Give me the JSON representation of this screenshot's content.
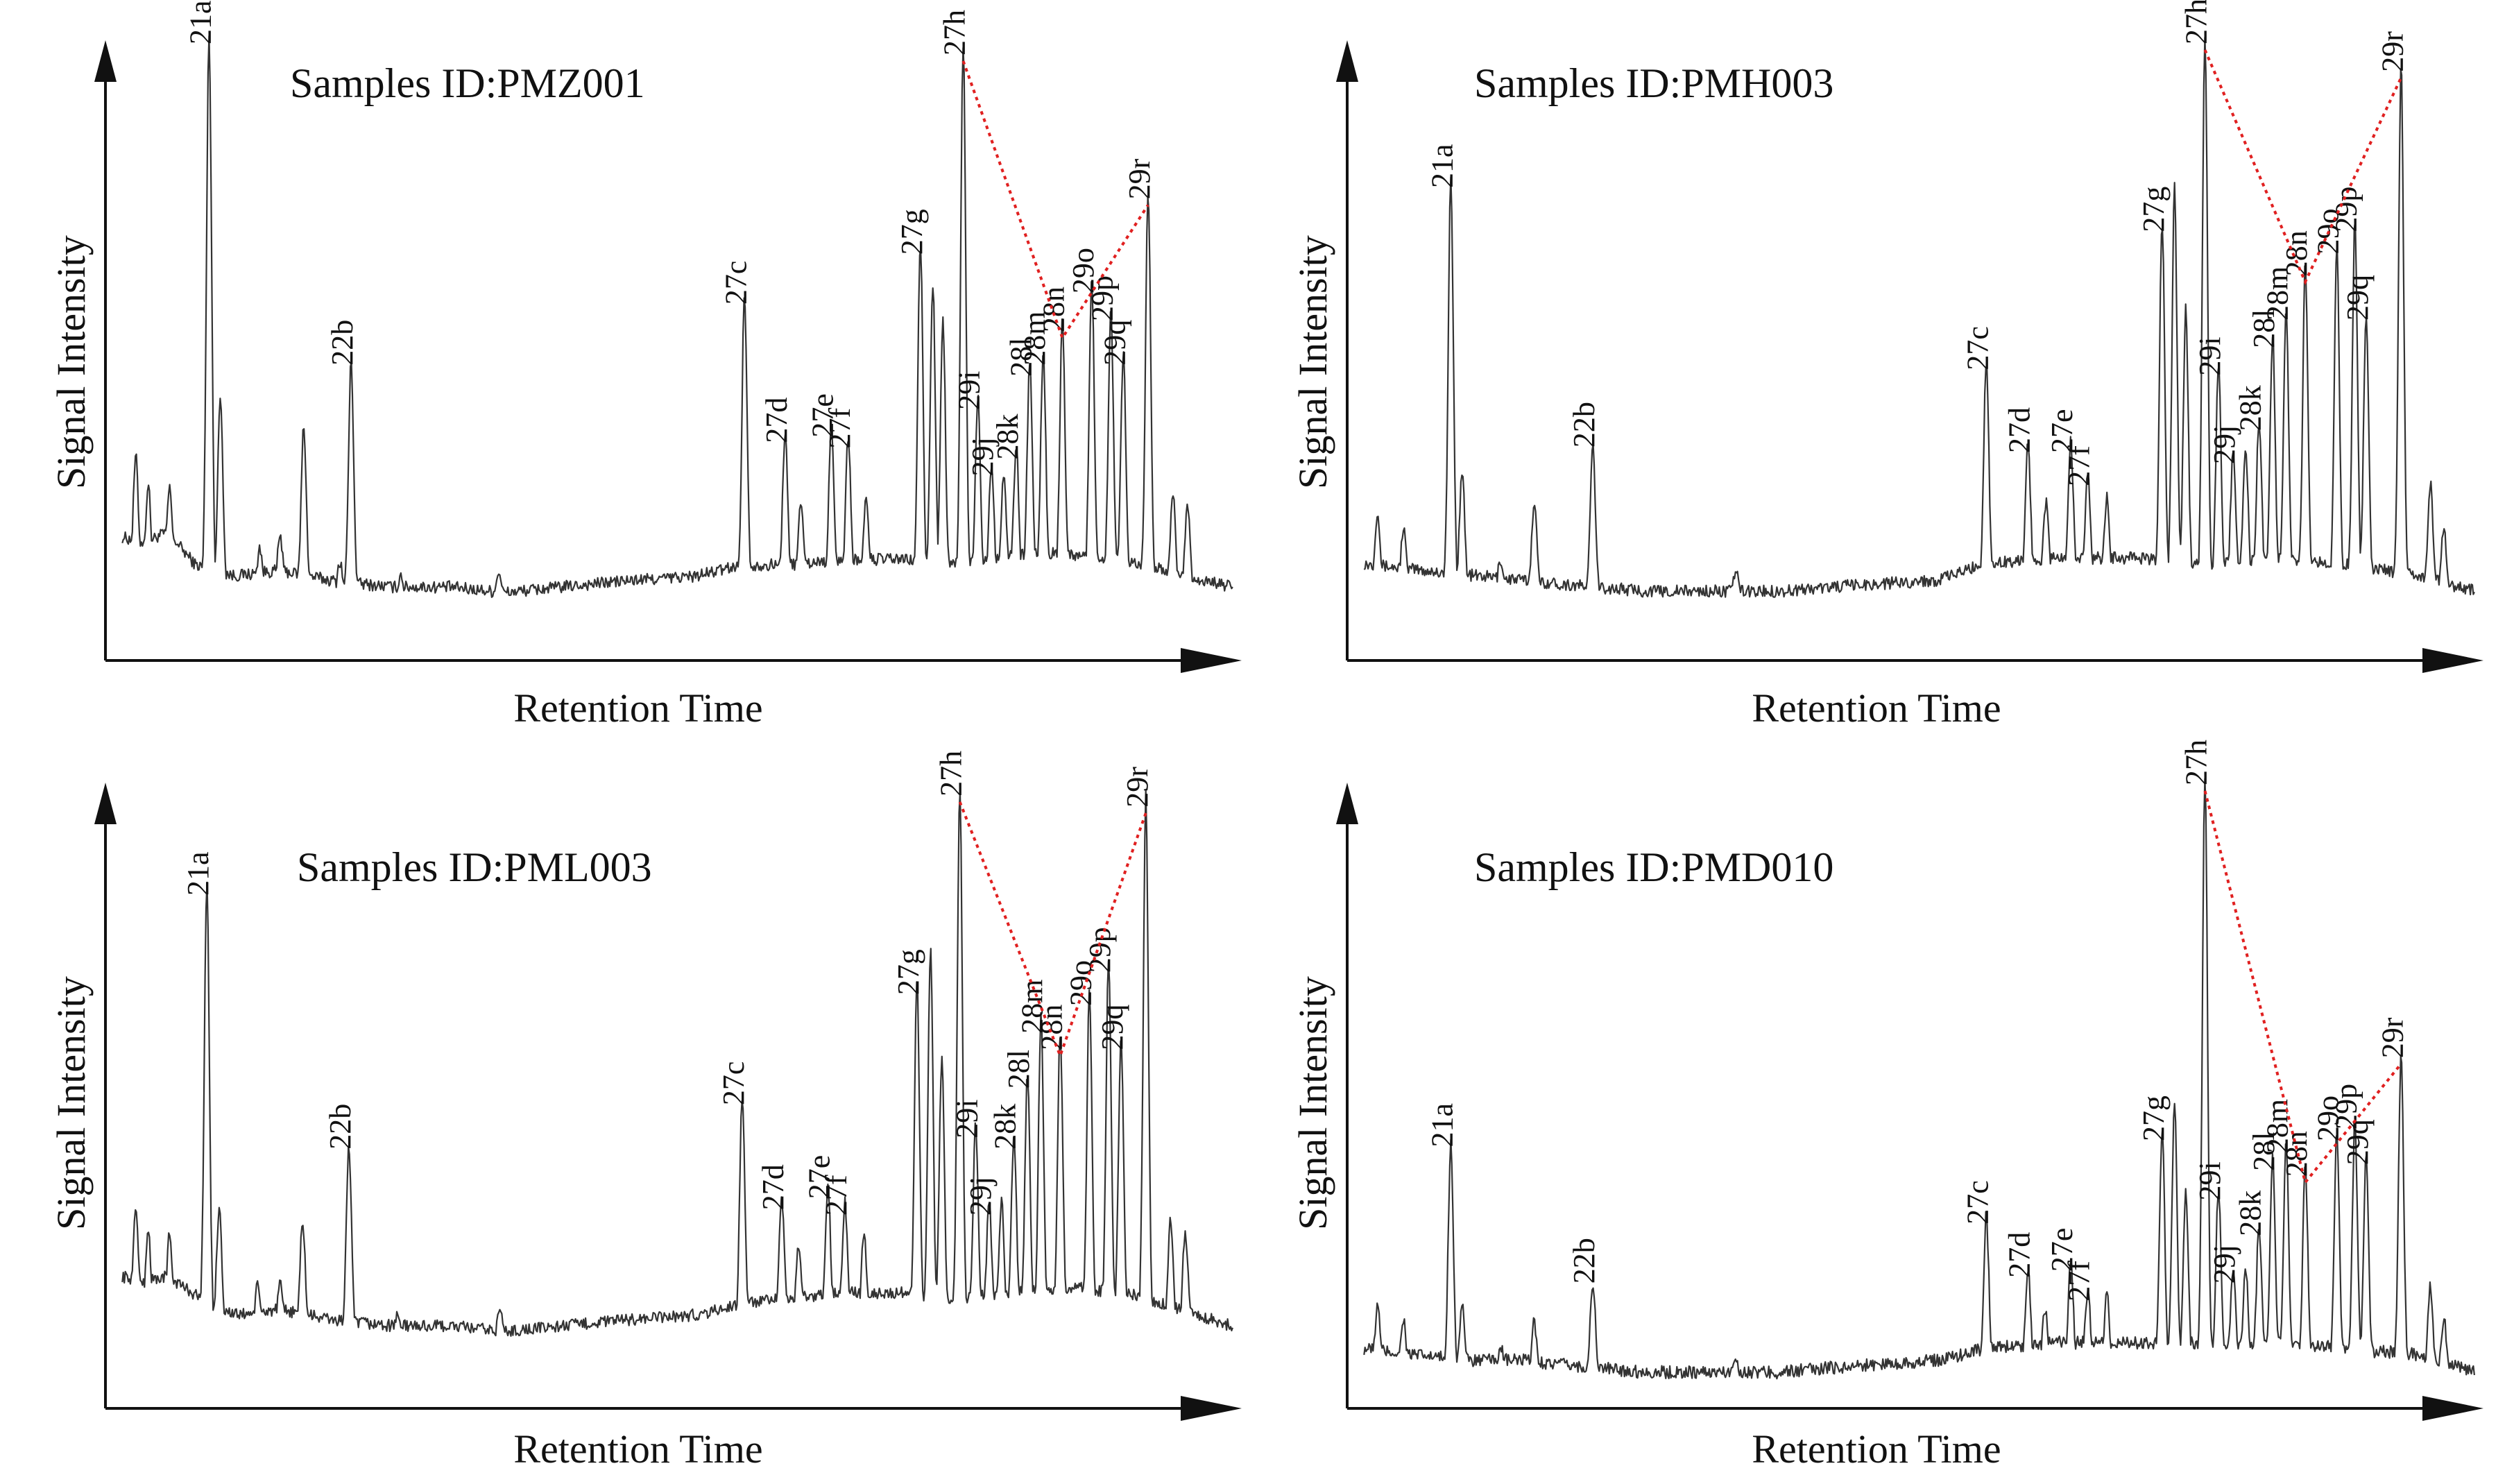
{
  "colors": {
    "trace": "#333333",
    "trend": "#e02020",
    "axis": "#111111"
  },
  "chart_data": [
    {
      "type": "line",
      "title": "Samples ID:PMZ001",
      "xlabel": "Retention Time",
      "ylabel": "Signal Intensity",
      "trend_line": [
        "27h",
        "28n",
        "29r"
      ],
      "baseline": [
        [
          0.01,
          0.12
        ],
        [
          0.03,
          0.11
        ],
        [
          0.05,
          0.13
        ],
        [
          0.075,
          0.07
        ],
        [
          0.11,
          0.05
        ],
        [
          0.15,
          0.06
        ],
        [
          0.2,
          0.04
        ],
        [
          0.25,
          0.03
        ],
        [
          0.3,
          0.03
        ],
        [
          0.35,
          0.02
        ],
        [
          0.4,
          0.03
        ],
        [
          0.45,
          0.04
        ],
        [
          0.52,
          0.05
        ],
        [
          0.56,
          0.07
        ],
        [
          0.6,
          0.07
        ],
        [
          0.65,
          0.08
        ],
        [
          0.7,
          0.08
        ],
        [
          0.75,
          0.07
        ],
        [
          0.8,
          0.09
        ],
        [
          0.85,
          0.09
        ],
        [
          0.9,
          0.08
        ],
        [
          0.95,
          0.05
        ],
        [
          0.995,
          0.03
        ]
      ],
      "peaks": [
        {
          "label": "",
          "x": 0.022,
          "y": 0.22
        },
        {
          "label": "",
          "x": 0.033,
          "y": 0.17
        },
        {
          "label": "",
          "x": 0.052,
          "y": 0.16
        },
        {
          "label": "21a",
          "x": 0.087,
          "y": 1.0
        },
        {
          "label": "",
          "x": 0.097,
          "y": 0.35
        },
        {
          "label": "",
          "x": 0.132,
          "y": 0.08
        },
        {
          "label": "",
          "x": 0.15,
          "y": 0.1
        },
        {
          "label": "",
          "x": 0.171,
          "y": 0.3
        },
        {
          "label": "",
          "x": 0.203,
          "y": 0.06
        },
        {
          "label": "22b",
          "x": 0.213,
          "y": 0.42
        },
        {
          "label": "",
          "x": 0.257,
          "y": 0.04
        },
        {
          "label": "",
          "x": 0.344,
          "y": 0.05
        },
        {
          "label": "27c",
          "x": 0.562,
          "y": 0.53
        },
        {
          "label": "27d",
          "x": 0.598,
          "y": 0.28
        },
        {
          "label": "",
          "x": 0.612,
          "y": 0.16
        },
        {
          "label": "27e",
          "x": 0.639,
          "y": 0.29
        },
        {
          "label": "27f",
          "x": 0.654,
          "y": 0.27
        },
        {
          "label": "",
          "x": 0.67,
          "y": 0.16
        },
        {
          "label": "27g",
          "x": 0.718,
          "y": 0.62
        },
        {
          "label": "",
          "x": 0.729,
          "y": 0.55
        },
        {
          "label": "",
          "x": 0.738,
          "y": 0.48
        },
        {
          "label": "27h",
          "x": 0.756,
          "y": 0.98
        },
        {
          "label": "29i",
          "x": 0.769,
          "y": 0.34
        },
        {
          "label": "29j",
          "x": 0.781,
          "y": 0.22
        },
        {
          "label": "",
          "x": 0.792,
          "y": 0.2
        },
        {
          "label": "28k",
          "x": 0.803,
          "y": 0.25
        },
        {
          "label": "28l",
          "x": 0.815,
          "y": 0.4
        },
        {
          "label": "28m",
          "x": 0.827,
          "y": 0.42
        },
        {
          "label": "28n",
          "x": 0.844,
          "y": 0.48
        },
        {
          "label": "29o",
          "x": 0.87,
          "y": 0.55
        },
        {
          "label": "29p",
          "x": 0.887,
          "y": 0.5
        },
        {
          "label": "29q",
          "x": 0.898,
          "y": 0.42
        },
        {
          "label": "29r",
          "x": 0.92,
          "y": 0.72
        },
        {
          "label": "",
          "x": 0.942,
          "y": 0.18
        },
        {
          "label": "",
          "x": 0.955,
          "y": 0.16
        }
      ]
    },
    {
      "type": "line",
      "title": "Samples ID:PMH003",
      "xlabel": "Retention Time",
      "ylabel": "Signal Intensity",
      "trend_line": [
        "27h",
        "28n",
        "29r"
      ],
      "baseline": [
        [
          0.01,
          0.07
        ],
        [
          0.05,
          0.06
        ],
        [
          0.1,
          0.05
        ],
        [
          0.15,
          0.04
        ],
        [
          0.2,
          0.03
        ],
        [
          0.26,
          0.02
        ],
        [
          0.32,
          0.02
        ],
        [
          0.38,
          0.02
        ],
        [
          0.44,
          0.03
        ],
        [
          0.52,
          0.04
        ],
        [
          0.56,
          0.07
        ],
        [
          0.62,
          0.08
        ],
        [
          0.7,
          0.08
        ],
        [
          0.76,
          0.07
        ],
        [
          0.82,
          0.08
        ],
        [
          0.88,
          0.07
        ],
        [
          0.94,
          0.05
        ],
        [
          0.995,
          0.02
        ]
      ],
      "peaks": [
        {
          "label": "",
          "x": 0.022,
          "y": 0.14
        },
        {
          "label": "",
          "x": 0.045,
          "y": 0.11
        },
        {
          "label": "21a",
          "x": 0.087,
          "y": 0.74
        },
        {
          "label": "",
          "x": 0.097,
          "y": 0.22
        },
        {
          "label": "",
          "x": 0.131,
          "y": 0.06
        },
        {
          "label": "",
          "x": 0.161,
          "y": 0.17
        },
        {
          "label": "22b",
          "x": 0.213,
          "y": 0.27
        },
        {
          "label": "",
          "x": 0.34,
          "y": 0.05
        },
        {
          "label": "27c",
          "x": 0.562,
          "y": 0.41
        },
        {
          "label": "27d",
          "x": 0.599,
          "y": 0.26
        },
        {
          "label": "",
          "x": 0.615,
          "y": 0.15
        },
        {
          "label": "27e",
          "x": 0.637,
          "y": 0.26
        },
        {
          "label": "27f",
          "x": 0.652,
          "y": 0.2
        },
        {
          "label": "",
          "x": 0.669,
          "y": 0.16
        },
        {
          "label": "27g",
          "x": 0.718,
          "y": 0.66
        },
        {
          "label": "",
          "x": 0.729,
          "y": 0.72
        },
        {
          "label": "",
          "x": 0.739,
          "y": 0.5
        },
        {
          "label": "27h",
          "x": 0.756,
          "y": 1.0
        },
        {
          "label": "29i",
          "x": 0.768,
          "y": 0.4
        },
        {
          "label": "29j",
          "x": 0.781,
          "y": 0.24
        },
        {
          "label": "",
          "x": 0.792,
          "y": 0.25
        },
        {
          "label": "28k",
          "x": 0.804,
          "y": 0.3
        },
        {
          "label": "28l",
          "x": 0.816,
          "y": 0.45
        },
        {
          "label": "28m",
          "x": 0.828,
          "y": 0.5
        },
        {
          "label": "28n",
          "x": 0.845,
          "y": 0.58
        },
        {
          "label": "29o",
          "x": 0.873,
          "y": 0.62
        },
        {
          "label": "29p",
          "x": 0.889,
          "y": 0.66
        },
        {
          "label": "29q",
          "x": 0.899,
          "y": 0.5
        },
        {
          "label": "29r",
          "x": 0.93,
          "y": 0.95
        },
        {
          "label": "",
          "x": 0.956,
          "y": 0.2
        },
        {
          "label": "",
          "x": 0.968,
          "y": 0.12
        }
      ]
    },
    {
      "type": "line",
      "title": "Samples ID:PML003",
      "xlabel": "Retention Time",
      "ylabel": "Signal Intensity",
      "trend_line": [
        "27h",
        "28n",
        "29r"
      ],
      "baseline": [
        [
          0.01,
          0.12
        ],
        [
          0.03,
          0.11
        ],
        [
          0.05,
          0.12
        ],
        [
          0.08,
          0.08
        ],
        [
          0.11,
          0.05
        ],
        [
          0.15,
          0.06
        ],
        [
          0.2,
          0.04
        ],
        [
          0.25,
          0.03
        ],
        [
          0.3,
          0.03
        ],
        [
          0.35,
          0.02
        ],
        [
          0.4,
          0.03
        ],
        [
          0.45,
          0.04
        ],
        [
          0.52,
          0.05
        ],
        [
          0.56,
          0.07
        ],
        [
          0.6,
          0.08
        ],
        [
          0.65,
          0.09
        ],
        [
          0.7,
          0.09
        ],
        [
          0.75,
          0.08
        ],
        [
          0.8,
          0.09
        ],
        [
          0.85,
          0.1
        ],
        [
          0.9,
          0.09
        ],
        [
          0.95,
          0.06
        ],
        [
          0.995,
          0.03
        ]
      ],
      "peaks": [
        {
          "label": "",
          "x": 0.022,
          "y": 0.2
        },
        {
          "label": "",
          "x": 0.033,
          "y": 0.16
        },
        {
          "label": "",
          "x": 0.052,
          "y": 0.15
        },
        {
          "label": "21a",
          "x": 0.085,
          "y": 0.8
        },
        {
          "label": "",
          "x": 0.096,
          "y": 0.22
        },
        {
          "label": "",
          "x": 0.13,
          "y": 0.08
        },
        {
          "label": "",
          "x": 0.15,
          "y": 0.08
        },
        {
          "label": "",
          "x": 0.17,
          "y": 0.2
        },
        {
          "label": "22b",
          "x": 0.211,
          "y": 0.34
        },
        {
          "label": "",
          "x": 0.254,
          "y": 0.04
        },
        {
          "label": "",
          "x": 0.345,
          "y": 0.05
        },
        {
          "label": "27c",
          "x": 0.56,
          "y": 0.42
        },
        {
          "label": "27d",
          "x": 0.595,
          "y": 0.23
        },
        {
          "label": "",
          "x": 0.61,
          "y": 0.14
        },
        {
          "label": "27e",
          "x": 0.636,
          "y": 0.25
        },
        {
          "label": "27f",
          "x": 0.651,
          "y": 0.22
        },
        {
          "label": "",
          "x": 0.668,
          "y": 0.16
        },
        {
          "label": "27g",
          "x": 0.715,
          "y": 0.62
        },
        {
          "label": "",
          "x": 0.727,
          "y": 0.68
        },
        {
          "label": "",
          "x": 0.737,
          "y": 0.48
        },
        {
          "label": "27h",
          "x": 0.753,
          "y": 0.98
        },
        {
          "label": "29i",
          "x": 0.767,
          "y": 0.36
        },
        {
          "label": "29j",
          "x": 0.779,
          "y": 0.22
        },
        {
          "label": "",
          "x": 0.79,
          "y": 0.22
        },
        {
          "label": "28k",
          "x": 0.801,
          "y": 0.34
        },
        {
          "label": "28l",
          "x": 0.813,
          "y": 0.45
        },
        {
          "label": "28m",
          "x": 0.825,
          "y": 0.55
        },
        {
          "label": "28n",
          "x": 0.842,
          "y": 0.52
        },
        {
          "label": "29o",
          "x": 0.868,
          "y": 0.6
        },
        {
          "label": "29p",
          "x": 0.885,
          "y": 0.66
        },
        {
          "label": "29q",
          "x": 0.896,
          "y": 0.52
        },
        {
          "label": "29r",
          "x": 0.918,
          "y": 0.96
        },
        {
          "label": "",
          "x": 0.94,
          "y": 0.2
        },
        {
          "label": "",
          "x": 0.953,
          "y": 0.18
        }
      ]
    },
    {
      "type": "line",
      "title": "Samples ID:PMD010",
      "xlabel": "Retention Time",
      "ylabel": "Signal Intensity",
      "trend_line": [
        "27h",
        "28n",
        "29r"
      ],
      "baseline": [
        [
          0.01,
          0.06
        ],
        [
          0.05,
          0.05
        ],
        [
          0.1,
          0.04
        ],
        [
          0.15,
          0.04
        ],
        [
          0.2,
          0.03
        ],
        [
          0.26,
          0.02
        ],
        [
          0.32,
          0.02
        ],
        [
          0.38,
          0.02
        ],
        [
          0.44,
          0.03
        ],
        [
          0.52,
          0.04
        ],
        [
          0.56,
          0.06
        ],
        [
          0.62,
          0.07
        ],
        [
          0.7,
          0.07
        ],
        [
          0.76,
          0.07
        ],
        [
          0.82,
          0.07
        ],
        [
          0.88,
          0.06
        ],
        [
          0.94,
          0.05
        ],
        [
          0.995,
          0.02
        ]
      ],
      "peaks": [
        {
          "label": "",
          "x": 0.022,
          "y": 0.11
        },
        {
          "label": "",
          "x": 0.045,
          "y": 0.09
        },
        {
          "label": "21a",
          "x": 0.087,
          "y": 0.39
        },
        {
          "label": "",
          "x": 0.097,
          "y": 0.12
        },
        {
          "label": "",
          "x": 0.131,
          "y": 0.05
        },
        {
          "label": "",
          "x": 0.161,
          "y": 0.09
        },
        {
          "label": "22b",
          "x": 0.213,
          "y": 0.16
        },
        {
          "label": "",
          "x": 0.34,
          "y": 0.04
        },
        {
          "label": "27c",
          "x": 0.562,
          "y": 0.26
        },
        {
          "label": "27d",
          "x": 0.599,
          "y": 0.17
        },
        {
          "label": "",
          "x": 0.614,
          "y": 0.1
        },
        {
          "label": "27e",
          "x": 0.637,
          "y": 0.18
        },
        {
          "label": "27f",
          "x": 0.652,
          "y": 0.13
        },
        {
          "label": "",
          "x": 0.669,
          "y": 0.12
        },
        {
          "label": "27g",
          "x": 0.718,
          "y": 0.4
        },
        {
          "label": "",
          "x": 0.729,
          "y": 0.44
        },
        {
          "label": "",
          "x": 0.739,
          "y": 0.3
        },
        {
          "label": "27h",
          "x": 0.756,
          "y": 1.0
        },
        {
          "label": "29i",
          "x": 0.768,
          "y": 0.3
        },
        {
          "label": "29j",
          "x": 0.781,
          "y": 0.16
        },
        {
          "label": "",
          "x": 0.792,
          "y": 0.17
        },
        {
          "label": "28k",
          "x": 0.804,
          "y": 0.24
        },
        {
          "label": "28l",
          "x": 0.816,
          "y": 0.35
        },
        {
          "label": "28m",
          "x": 0.828,
          "y": 0.38
        },
        {
          "label": "28n",
          "x": 0.845,
          "y": 0.34
        },
        {
          "label": "29o",
          "x": 0.873,
          "y": 0.4
        },
        {
          "label": "29p",
          "x": 0.889,
          "y": 0.42
        },
        {
          "label": "29q",
          "x": 0.899,
          "y": 0.36
        },
        {
          "label": "29r",
          "x": 0.93,
          "y": 0.54
        },
        {
          "label": "",
          "x": 0.956,
          "y": 0.15
        },
        {
          "label": "",
          "x": 0.968,
          "y": 0.1
        }
      ]
    }
  ]
}
